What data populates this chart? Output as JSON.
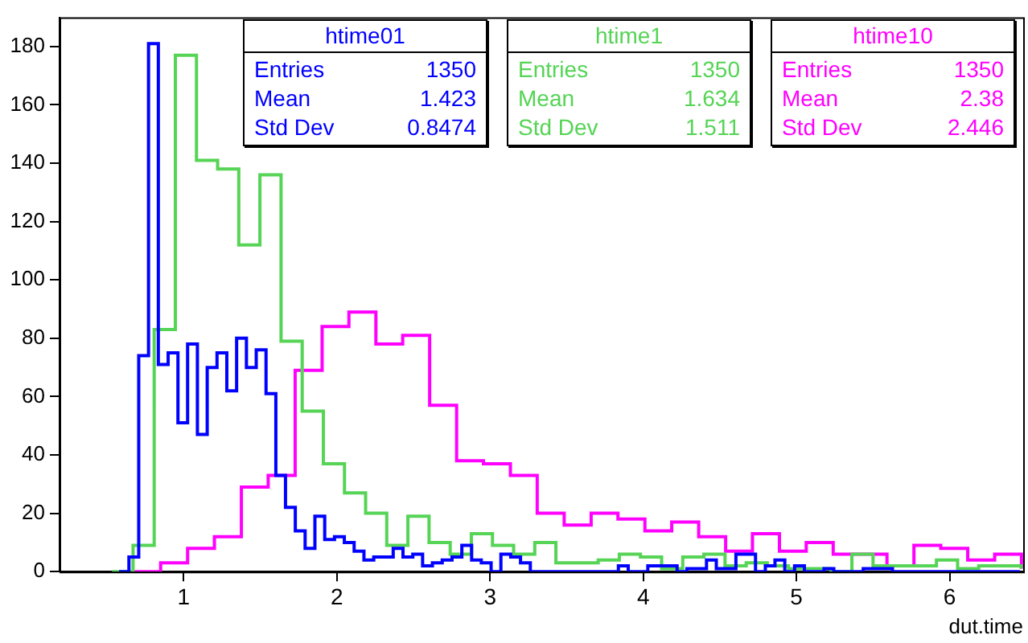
{
  "chart_data": {
    "type": "step",
    "xlabel": "dut.time",
    "xlim": [
      0.19,
      6.48
    ],
    "xticks": [
      1,
      2,
      3,
      4,
      5,
      6
    ],
    "ylim": [
      0,
      190
    ],
    "yticks": [
      0,
      20,
      40,
      60,
      80,
      100,
      120,
      140,
      160,
      180
    ],
    "grid": false,
    "annotations": [
      "Entries 1350",
      "Mean 1.423",
      "Std Dev 0.8474",
      "Entries 1350",
      "Mean 1.634",
      "Std Dev 1.511",
      "Entries 1350",
      "Mean 2.38",
      "Std Dev 2.446"
    ],
    "series": [
      {
        "name": "htime01",
        "color": "#0000ff",
        "x": [
          0.579,
          0.643,
          0.707,
          0.771,
          0.835,
          0.899,
          0.963,
          1.026,
          1.09,
          1.154,
          1.218,
          1.282,
          1.346,
          1.41,
          1.474,
          1.538,
          1.602,
          1.665,
          1.729,
          1.793,
          1.857,
          1.921,
          1.985,
          2.049,
          2.113,
          2.177,
          2.241,
          2.304,
          2.368,
          2.432,
          2.496,
          2.56,
          2.624,
          2.688,
          2.752,
          2.816,
          2.88,
          2.943,
          3.007,
          3.071,
          3.135,
          3.199,
          3.263,
          3.327,
          3.391,
          3.455,
          3.519,
          3.582,
          3.646,
          3.71,
          3.774,
          3.838,
          3.902,
          3.966,
          4.03,
          4.094,
          4.158,
          4.221,
          4.285,
          4.349,
          4.413,
          4.477,
          4.541,
          4.605,
          4.669,
          4.733,
          4.797,
          4.86,
          4.924,
          4.988,
          5.052,
          5.116,
          5.18,
          5.244,
          5.308,
          5.372,
          5.436,
          5.499,
          5.563,
          5.627,
          5.691,
          5.755,
          5.819,
          5.883,
          5.947,
          6.011,
          6.075,
          6.138,
          6.202,
          6.266,
          6.33,
          6.394,
          6.458
        ],
        "values": [
          0,
          5,
          74,
          181,
          71,
          75,
          51,
          78,
          47,
          70,
          75,
          62,
          80,
          70,
          76,
          61,
          33,
          22,
          14,
          8,
          19,
          11,
          12,
          10,
          7,
          4,
          5,
          5,
          8,
          5,
          6,
          2,
          3,
          4,
          5,
          9,
          4,
          3,
          0,
          6,
          5,
          3,
          0,
          0,
          0,
          0,
          0,
          0,
          0,
          0,
          0,
          2,
          0,
          0,
          2,
          2,
          2,
          0,
          1,
          1,
          4,
          1,
          1,
          6,
          6,
          0,
          2,
          4,
          0,
          2,
          0,
          0,
          1,
          0,
          0,
          0,
          1,
          1,
          1,
          0,
          0,
          0,
          0,
          0,
          0,
          0,
          0,
          0,
          0,
          0,
          0,
          0,
          0
        ]
      },
      {
        "name": "htime1",
        "color": "#55d455",
        "x": [
          0.532,
          0.67,
          0.808,
          0.946,
          1.084,
          1.222,
          1.36,
          1.498,
          1.636,
          1.774,
          1.912,
          2.05,
          2.188,
          2.326,
          2.464,
          2.602,
          2.74,
          2.878,
          3.016,
          3.154,
          3.292,
          3.43,
          3.568,
          3.706,
          3.844,
          3.982,
          4.12,
          4.258,
          4.396,
          4.534,
          4.672,
          4.81,
          4.948,
          5.086,
          5.224,
          5.362,
          5.5,
          5.638,
          5.776,
          5.914,
          6.052,
          6.19,
          6.328,
          6.466
        ],
        "values": [
          0,
          9,
          83,
          177,
          141,
          138,
          112,
          136,
          79,
          55,
          37,
          27,
          20,
          9,
          19,
          10,
          6,
          13,
          9,
          6,
          10,
          3,
          3,
          4,
          6,
          5,
          1,
          5,
          6,
          2,
          3,
          2,
          1,
          1,
          0,
          6,
          2,
          2,
          2,
          4,
          1,
          2,
          2,
          1
        ]
      },
      {
        "name": "htime10",
        "color": "#ff00ff",
        "x": [
          0.674,
          0.85,
          1.026,
          1.201,
          1.377,
          1.552,
          1.728,
          1.904,
          2.079,
          2.255,
          2.43,
          2.606,
          2.782,
          2.957,
          3.133,
          3.308,
          3.484,
          3.66,
          3.835,
          4.011,
          4.186,
          4.362,
          4.538,
          4.713,
          4.889,
          5.064,
          5.24,
          5.416,
          5.591,
          5.767,
          5.942,
          6.118,
          6.294,
          6.469
        ],
        "values": [
          0,
          3,
          8,
          12,
          29,
          33,
          69,
          84,
          89,
          78,
          81,
          57,
          38,
          37,
          33,
          20,
          16,
          20,
          18,
          14,
          17,
          12,
          7,
          13,
          7,
          10,
          6,
          6,
          2,
          9,
          8,
          4,
          6,
          1
        ]
      }
    ]
  }
}
